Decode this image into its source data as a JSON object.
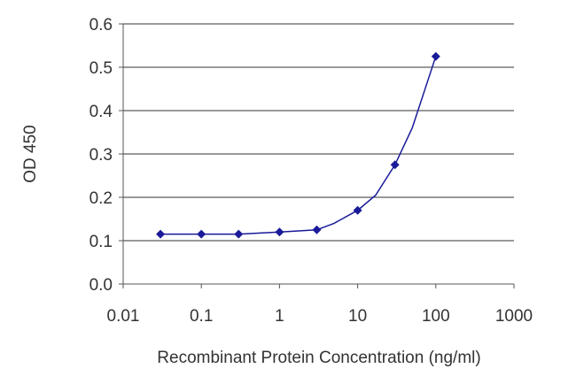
{
  "chart_data": {
    "type": "scatter",
    "title": "",
    "xlabel": "Recombinant Protein Concentration (ng/ml)",
    "ylabel": "OD 450",
    "x_scale": "log",
    "xlim": [
      0.01,
      1000
    ],
    "ylim": [
      0.0,
      0.6
    ],
    "x_ticks": [
      0.01,
      0.1,
      1,
      10,
      100,
      1000
    ],
    "x_tick_labels": [
      "0.01",
      "0.1",
      "1",
      "10",
      "100",
      "1000"
    ],
    "y_ticks": [
      0.0,
      0.1,
      0.2,
      0.3,
      0.4,
      0.5,
      0.6
    ],
    "y_tick_labels": [
      "0.0",
      "0.1",
      "0.2",
      "0.3",
      "0.4",
      "0.5",
      "0.6"
    ],
    "grid": "horizontal",
    "legend": "none",
    "series": [
      {
        "x": [
          0.03,
          0.1,
          0.3,
          1,
          3,
          10,
          30,
          100
        ],
        "y": [
          0.115,
          0.115,
          0.115,
          0.12,
          0.125,
          0.17,
          0.275,
          0.525
        ],
        "fit_x": [
          0.03,
          0.1,
          0.3,
          1,
          3,
          5,
          10,
          17,
          30,
          50,
          100
        ],
        "fit_y": [
          0.115,
          0.115,
          0.115,
          0.12,
          0.125,
          0.14,
          0.17,
          0.205,
          0.275,
          0.36,
          0.525
        ],
        "color": "#1a1a99"
      }
    ]
  }
}
